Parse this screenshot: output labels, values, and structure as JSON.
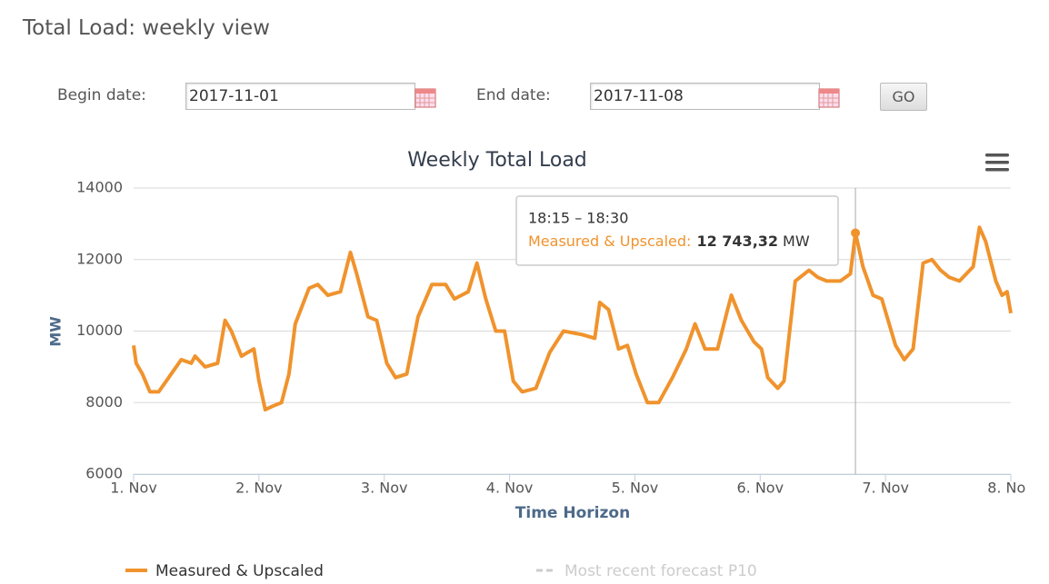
{
  "header": {
    "title": "Total Load: weekly view"
  },
  "form": {
    "begin_label": "Begin date:",
    "begin_value": "2017-11-01",
    "end_label": "End date:",
    "end_value": "2017-11-08",
    "button": "GO"
  },
  "chart_data": {
    "type": "line",
    "title": "Weekly Total Load",
    "y_label": "MW",
    "x_label": "Time Horizon",
    "xlim": [
      0,
      7
    ],
    "xticks": [
      {
        "value": 0,
        "label": "1. Nov"
      },
      {
        "value": 1,
        "label": "2. Nov"
      },
      {
        "value": 2,
        "label": "3. Nov"
      },
      {
        "value": 3,
        "label": "4. Nov"
      },
      {
        "value": 4,
        "label": "5. Nov"
      },
      {
        "value": 5,
        "label": "6. Nov"
      },
      {
        "value": 6,
        "label": "7. Nov"
      },
      {
        "value": 7,
        "label": "8. Nov"
      }
    ],
    "ylim": [
      6000,
      14000
    ],
    "yticks": [
      6000,
      8000,
      10000,
      12000,
      14000
    ],
    "grid": true,
    "series": [
      {
        "name": "Measured & Upscaled",
        "color": "#f0932d",
        "x": [
          0,
          0.02,
          0.07,
          0.13,
          0.2,
          0.28,
          0.38,
          0.46,
          0.49,
          0.57,
          0.67,
          0.73,
          0.78,
          0.86,
          0.91,
          0.96,
          1.0,
          1.05,
          1.11,
          1.18,
          1.24,
          1.29,
          1.4,
          1.47,
          1.55,
          1.65,
          1.73,
          1.78,
          1.87,
          1.94,
          2.02,
          2.09,
          2.18,
          2.27,
          2.38,
          2.49,
          2.56,
          2.67,
          2.74,
          2.81,
          2.89,
          2.96,
          3.03,
          3.1,
          3.21,
          3.32,
          3.43,
          3.58,
          3.68,
          3.72,
          3.79,
          3.87,
          3.94,
          4.01,
          4.1,
          4.19,
          4.3,
          4.41,
          4.48,
          4.56,
          4.66,
          4.74,
          4.77,
          4.85,
          4.95,
          5.01,
          5.06,
          5.14,
          5.19,
          5.28,
          5.39,
          5.46,
          5.53,
          5.64,
          5.72,
          5.76,
          5.82,
          5.9,
          5.97,
          6.08,
          6.15,
          6.22,
          6.3,
          6.37,
          6.44,
          6.51,
          6.59,
          6.7,
          6.75,
          6.8,
          6.88,
          6.93,
          6.97,
          7.0
        ],
        "values": [
          9600,
          9100,
          8800,
          8300,
          8300,
          8700,
          9200,
          9100,
          9300,
          9000,
          9100,
          10300,
          10000,
          9300,
          9400,
          9500,
          8600,
          7800,
          7900,
          8000,
          8800,
          10200,
          11200,
          11300,
          11000,
          11100,
          12200,
          11600,
          10400,
          10300,
          9100,
          8700,
          8800,
          10400,
          11300,
          11300,
          10900,
          11100,
          11900,
          10900,
          10000,
          10000,
          8600,
          8300,
          8400,
          9400,
          10000,
          9900,
          9800,
          10800,
          10600,
          9500,
          9600,
          8800,
          8000,
          8000,
          8700,
          9500,
          10200,
          9500,
          9500,
          10600,
          11000,
          10300,
          9700,
          9500,
          8700,
          8400,
          8600,
          11400,
          11700,
          11500,
          11400,
          11400,
          11600,
          12743.32,
          11800,
          11000,
          10900,
          9600,
          9200,
          9500,
          11900,
          12000,
          11700,
          11500,
          11400,
          11800,
          12900,
          12500,
          11400,
          11000,
          11100,
          10500
        ]
      }
    ],
    "inactive_legend": [
      {
        "name": "Most recent forecast P10",
        "color": "#cccccc"
      }
    ],
    "tooltip": {
      "header": "18:15 – 18:30",
      "label": "Measured & Upscaled:",
      "value": 12743.32,
      "value_label": "12 743,32",
      "unit": "MW"
    }
  }
}
